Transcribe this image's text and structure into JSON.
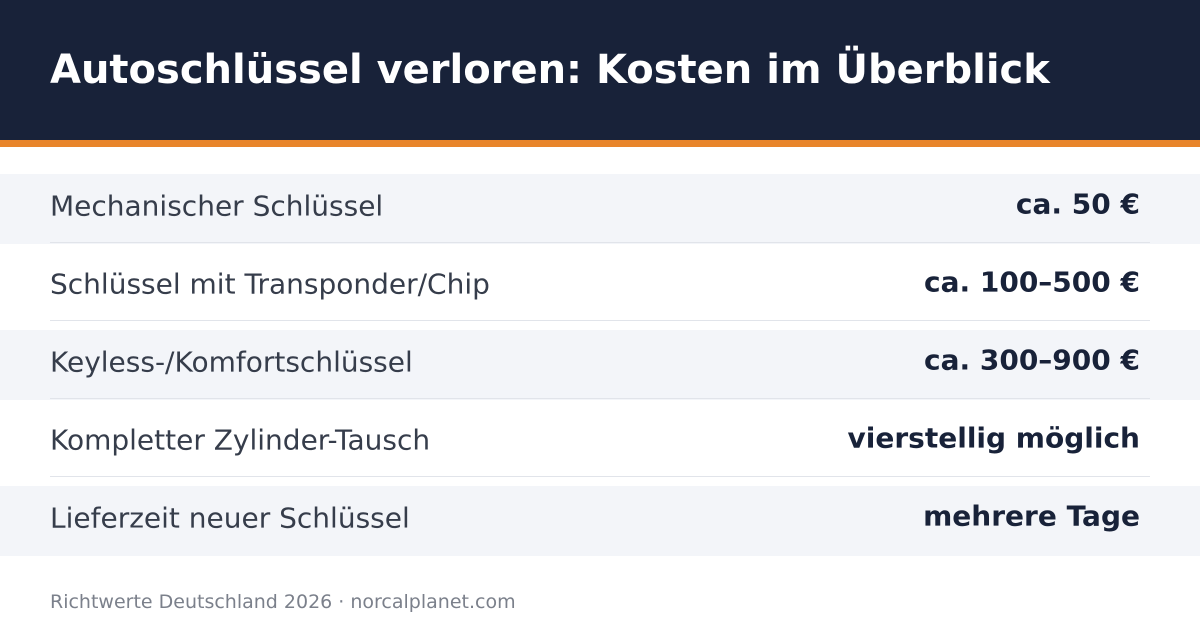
{
  "header": {
    "title": "Autoschlüssel verloren: Kosten im Überblick"
  },
  "table": {
    "rows": [
      [
        "Mechanischer Schlüssel",
        "ca. 50 €"
      ],
      [
        "Schlüssel mit Transponder/Chip",
        "ca. 100–500 €"
      ],
      [
        "Keyless-/Komfortschlüssel",
        "ca. 300–900 €"
      ],
      [
        "Kompletter Zylinder-Tausch",
        "vierstellig möglich"
      ],
      [
        "Lieferzeit neuer Schlüssel",
        "mehrere Tage"
      ]
    ]
  },
  "footer": {
    "text": "Richtwerte Deutschland 2026 · norcalplanet.com"
  }
}
